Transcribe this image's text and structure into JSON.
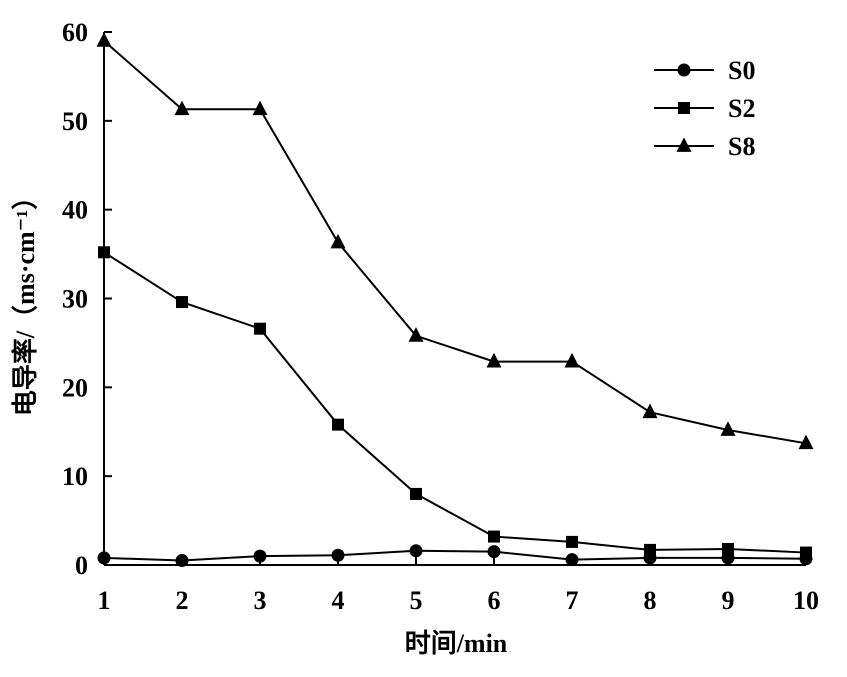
{
  "chart_data": {
    "type": "line",
    "xlabel": "时间/min",
    "ylabel": "电导率/（ms·cm⁻¹）",
    "x": [
      1,
      2,
      3,
      4,
      5,
      6,
      7,
      8,
      9,
      10
    ],
    "xlim": [
      1,
      10
    ],
    "ylim": [
      0,
      60
    ],
    "xticks": [
      "1",
      "2",
      "3",
      "4",
      "5",
      "6",
      "7",
      "8",
      "9",
      "10"
    ],
    "yticks": [
      "0",
      "10",
      "20",
      "30",
      "40",
      "50",
      "60"
    ],
    "grid": false,
    "legend_position": "top-right",
    "series": [
      {
        "name": "S0",
        "marker": "circle",
        "color": "#000000",
        "values": [
          0.8,
          0.5,
          1.0,
          1.1,
          1.6,
          1.5,
          0.6,
          0.8,
          0.8,
          0.7
        ]
      },
      {
        "name": "S2",
        "marker": "square",
        "color": "#000000",
        "values": [
          35.2,
          29.6,
          26.6,
          15.8,
          8.0,
          3.2,
          2.6,
          1.7,
          1.8,
          1.4
        ]
      },
      {
        "name": "S8",
        "marker": "triangle",
        "color": "#000000",
        "values": [
          59.0,
          51.3,
          51.3,
          36.3,
          25.8,
          22.9,
          22.9,
          17.2,
          15.2,
          13.7
        ]
      }
    ]
  }
}
